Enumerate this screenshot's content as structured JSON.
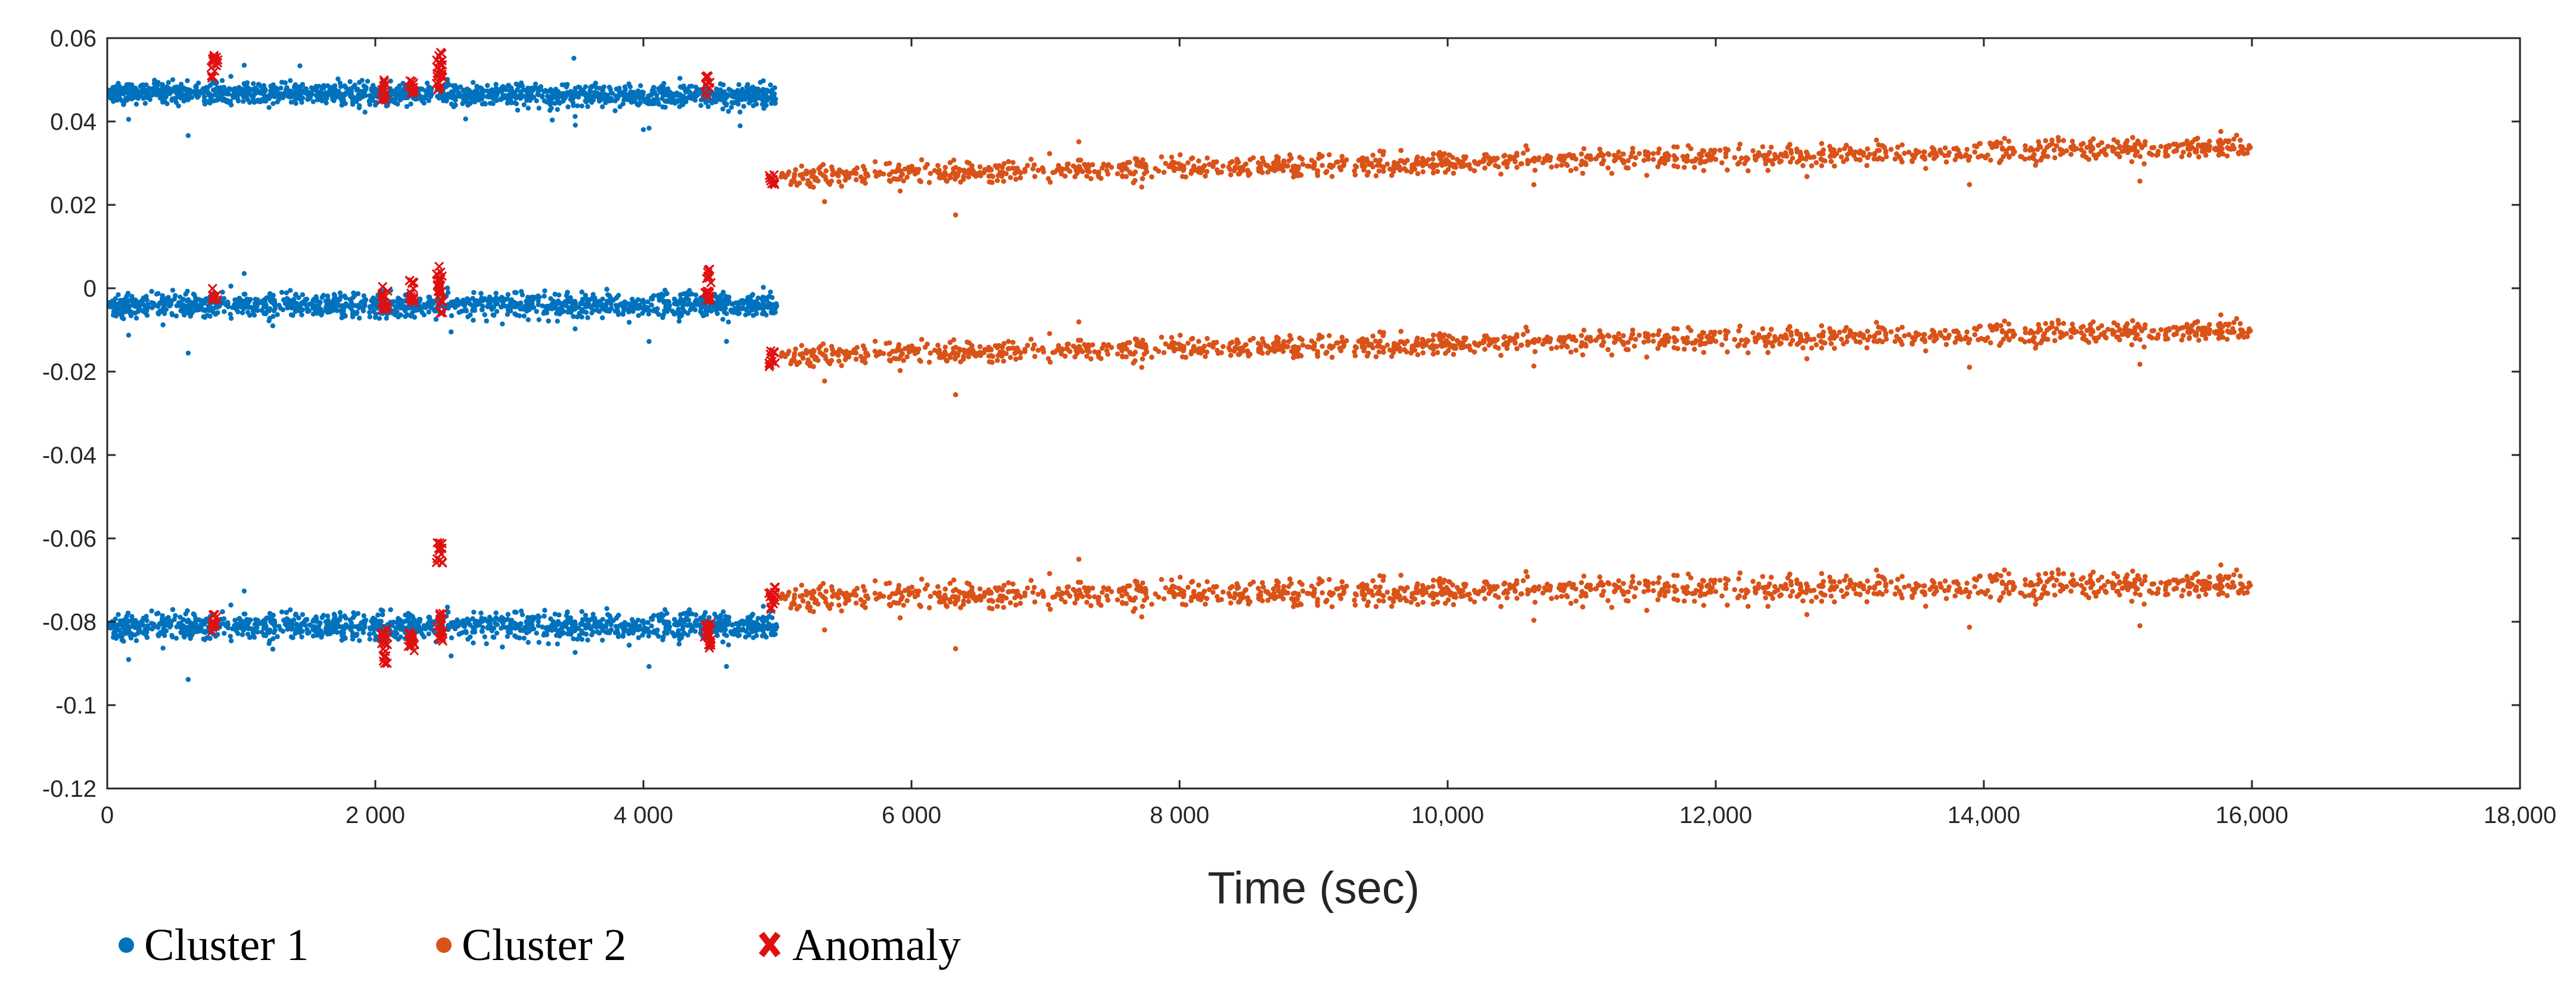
{
  "chart_data": {
    "type": "scatter",
    "title": "",
    "xlabel": "Time (sec)",
    "ylabel": "",
    "xlim": [
      0,
      18000
    ],
    "ylim": [
      -0.12,
      0.06
    ],
    "grid": false,
    "legend_position": "bottom-left",
    "x_ticks": [
      0,
      2000,
      4000,
      6000,
      8000,
      10000,
      12000,
      14000,
      16000,
      18000
    ],
    "x_tick_labels": [
      "0",
      "2 000",
      "4 000",
      "6 000",
      "8 000",
      "10,000",
      "12,000",
      "14,000",
      "16,000",
      "18,000"
    ],
    "y_ticks": [
      0.06,
      0.04,
      0.02,
      0,
      -0.02,
      -0.04,
      -0.06,
      -0.08,
      -0.1,
      -0.12
    ],
    "y_tick_labels": [
      "0.06",
      "0.04",
      "0.02",
      "0",
      "-0.02",
      "-0.04",
      "-0.06",
      "-0.08",
      "-0.1",
      "-0.12"
    ],
    "series": [
      {
        "name": "Cluster 1",
        "color": "#0072BD",
        "marker": "dot",
        "bands": [
          {
            "x_range": [
              0,
              5000
            ],
            "y_mean_start": 0.047,
            "y_mean_end": 0.046,
            "y_spread": 0.004
          },
          {
            "x_range": [
              0,
              5000
            ],
            "y_mean_start": -0.004,
            "y_mean_end": -0.004,
            "y_spread": 0.0045
          },
          {
            "x_range": [
              0,
              5000
            ],
            "y_mean_start": -0.081,
            "y_mean_end": -0.081,
            "y_spread": 0.005
          }
        ]
      },
      {
        "name": "Cluster 2",
        "color": "#D95319",
        "marker": "dot",
        "bands": [
          {
            "x_range": [
              5000,
              16000
            ],
            "y_mean_start": 0.027,
            "y_mean_end": 0.034,
            "y_spread": 0.004
          },
          {
            "x_range": [
              5000,
              16000
            ],
            "y_mean_start": -0.016,
            "y_mean_end": -0.01,
            "y_spread": 0.004
          },
          {
            "x_range": [
              5000,
              16000
            ],
            "y_mean_start": -0.074,
            "y_mean_end": -0.071,
            "y_spread": 0.005
          }
        ]
      },
      {
        "name": "Anomaly",
        "color": "#E01010",
        "marker": "x",
        "clusters": [
          {
            "x": 800,
            "bands": [
              [
                0.049,
                0.056
              ],
              [
                -0.003,
                0.0
              ],
              [
                -0.083,
                -0.078
              ]
            ]
          },
          {
            "x": 2070,
            "bands": [
              [
                0.045,
                0.05
              ],
              [
                -0.006,
                0.001
              ],
              [
                -0.09,
                -0.081
              ]
            ]
          },
          {
            "x": 2270,
            "bands": [
              [
                0.046,
                0.05
              ],
              [
                -0.004,
                0.002
              ],
              [
                -0.088,
                -0.082
              ]
            ]
          },
          {
            "x": 2480,
            "bands": [
              [
                0.047,
                0.057
              ],
              [
                -0.006,
                0.006
              ],
              [
                -0.085,
                -0.078
              ],
              [
                -0.066,
                -0.061
              ]
            ]
          },
          {
            "x": 4480,
            "bands": [
              [
                0.046,
                0.051
              ],
              [
                -0.003,
                0.005
              ],
              [
                -0.087,
                -0.079
              ]
            ]
          },
          {
            "x": 4960,
            "bands": [
              [
                0.024,
                0.028
              ],
              [
                -0.019,
                -0.015
              ],
              [
                -0.077,
                -0.071
              ]
            ]
          }
        ]
      }
    ]
  }
}
